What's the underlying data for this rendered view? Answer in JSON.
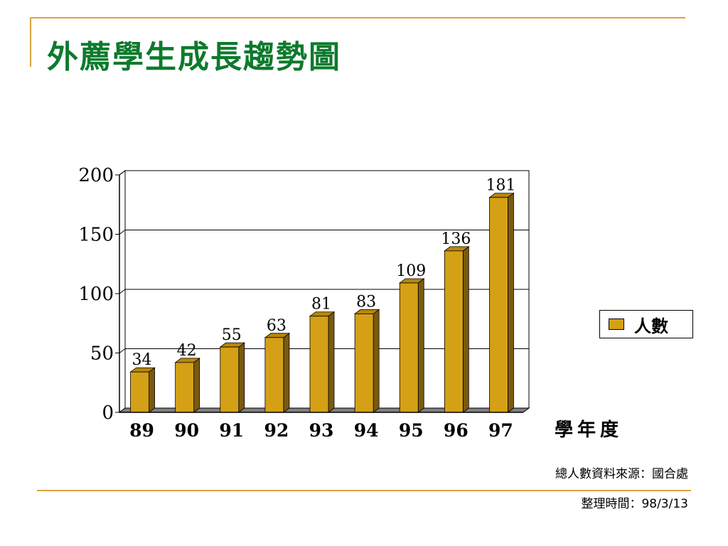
{
  "slide": {
    "title": "外薦學生成長趨勢圖",
    "source_text": "總人數資料來源：國合處",
    "date_text": "整理時間：98/3/13"
  },
  "colors": {
    "title": "#0d7a2c",
    "rule": "#d9a441",
    "bar_front": "#d4a015",
    "bar_side": "#7a5a10",
    "bar_top": "#b8860b",
    "floor": "#808080"
  },
  "chart_data": {
    "type": "bar",
    "categories": [
      "89",
      "90",
      "91",
      "92",
      "93",
      "94",
      "95",
      "96",
      "97"
    ],
    "series": [
      {
        "name": "人數",
        "values": [
          34,
          42,
          55,
          63,
          81,
          83,
          109,
          136,
          181
        ]
      }
    ],
    "xlabel": "學年度",
    "ylabel": "",
    "ylim": [
      0,
      200
    ],
    "yticks": [
      0,
      50,
      100,
      150,
      200
    ],
    "grid": true,
    "legend": "right",
    "style": "3d"
  }
}
